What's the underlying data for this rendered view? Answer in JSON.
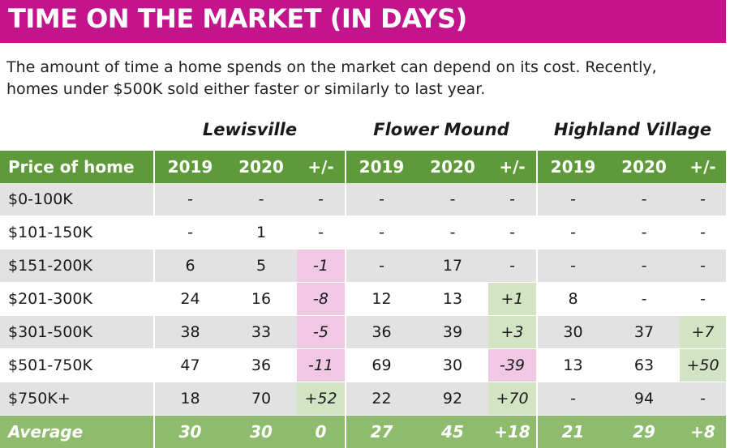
{
  "title": "TIME ON THE MARKET (IN DAYS)",
  "subtitle": "The amount of time a home spends on the market can depend on its cost. Recently, homes under $500K sold either faster or similarly to last year.",
  "colors": {
    "title_bg": "#c3148c",
    "header_bg": "#5e9a3a",
    "average_bg": "#8fbb6e",
    "negative_fill": "#f0c8e4",
    "positive_fill": "#d3e4c4",
    "stripe": "#e2e2e2"
  },
  "chart_data": {
    "type": "table",
    "title": "TIME ON THE MARKET (IN DAYS)",
    "groups": [
      "Lewisville",
      "Flower Mound",
      "Highland Village"
    ],
    "columns": [
      "Price of home",
      "2019",
      "2020",
      "+/-",
      "2019",
      "2020",
      "+/-",
      "2019",
      "2020",
      "+/-"
    ],
    "rows": [
      [
        "$0-100K",
        "-",
        "-",
        "-",
        "-",
        "-",
        "-",
        "-",
        "-",
        "-"
      ],
      [
        "$101-150K",
        "-",
        "1",
        "-",
        "-",
        "-",
        "-",
        "-",
        "-",
        "-"
      ],
      [
        "$151-200K",
        "6",
        "5",
        "-1",
        "-",
        "17",
        "-",
        "-",
        "-",
        "-"
      ],
      [
        "$201-300K",
        "24",
        "16",
        "-8",
        "12",
        "13",
        "+1",
        "8",
        "-",
        "-"
      ],
      [
        "$301-500K",
        "38",
        "33",
        "-5",
        "36",
        "39",
        "+3",
        "30",
        "37",
        "+7"
      ],
      [
        "$501-750K",
        "47",
        "36",
        "-11",
        "69",
        "30",
        "-39",
        "13",
        "63",
        "+50"
      ],
      [
        "$750K+",
        "18",
        "70",
        "+52",
        "22",
        "92",
        "+70",
        "-",
        "94",
        "-"
      ]
    ],
    "average": [
      "Average",
      "30",
      "30",
      "0",
      "27",
      "45",
      "+18",
      "21",
      "29",
      "+8"
    ]
  }
}
